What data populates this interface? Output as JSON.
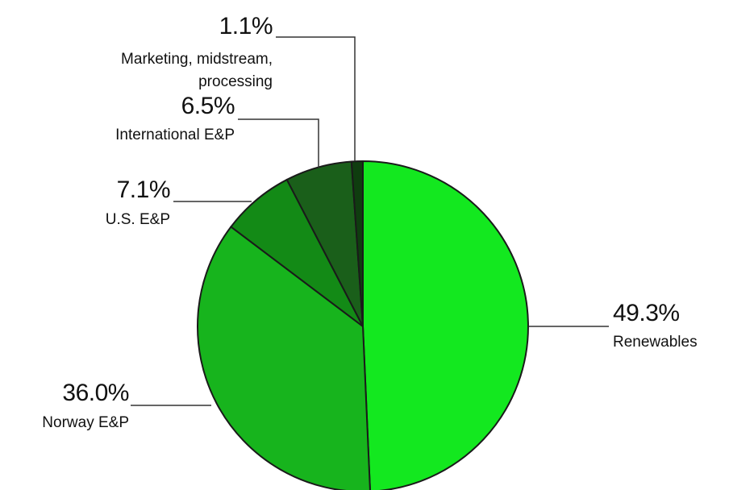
{
  "chart_data": {
    "type": "pie",
    "title": "",
    "slices": [
      {
        "label": "Renewables",
        "value": 49.3,
        "value_label": "49.3%",
        "color": "#13e81f"
      },
      {
        "label": "Norway E&P",
        "value": 36.0,
        "value_label": "36.0%",
        "color": "#17b41d"
      },
      {
        "label": "U.S. E&P",
        "value": 7.1,
        "value_label": "7.1%",
        "color": "#138a16"
      },
      {
        "label": "International E&P",
        "value": 6.5,
        "value_label": "6.5%",
        "color": "#1a5f1a"
      },
      {
        "label": "Marketing, midstream, processing",
        "label_lines": [
          "Marketing, midstream,",
          "processing"
        ],
        "value": 1.1,
        "value_label": "1.1%",
        "color": "#0f3d0f"
      }
    ],
    "start": "12 o'clock",
    "direction": "clockwise",
    "legend": "none (direct labels with leader lines)"
  }
}
